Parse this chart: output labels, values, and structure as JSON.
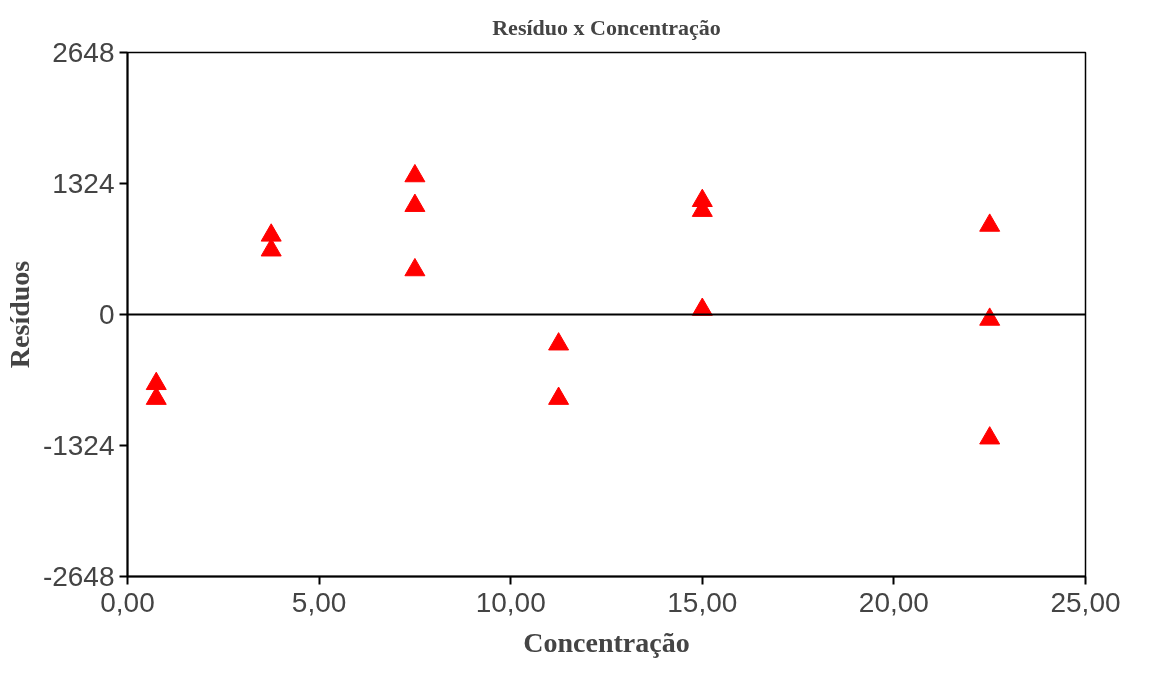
{
  "chart_data": {
    "type": "scatter",
    "title": "Resíduo x Concentração",
    "xlabel": "Concentração",
    "ylabel": "Resíduos",
    "series": [
      {
        "color": "#ff0000",
        "x": [
          0.75,
          0.75,
          3.75,
          3.75,
          7.5,
          7.5,
          7.5,
          11.25,
          11.25,
          15,
          15,
          15,
          22.5,
          22.5,
          22.5
        ],
        "values": [
          -700,
          -850,
          800,
          650,
          1400,
          1100,
          450,
          -300,
          -850,
          1150,
          1050,
          50,
          900,
          -50,
          -1250
        ]
      }
    ],
    "ref_lines": [
      {
        "axis": "y",
        "value": 0,
        "color": "#000000"
      }
    ],
    "marker": "triangle",
    "grid": false,
    "xlim": [
      0,
      25
    ],
    "xticks": [
      {
        "value": 0,
        "label": "0,00"
      },
      {
        "value": 5,
        "label": "5,00"
      },
      {
        "value": 10,
        "label": "10,00"
      },
      {
        "value": 15,
        "label": "15,00"
      },
      {
        "value": 20,
        "label": "20,00"
      },
      {
        "value": 25,
        "label": "25,00"
      }
    ],
    "ylim": [
      -2648,
      2648
    ],
    "yticks": [
      -2648,
      -1324,
      0,
      1324,
      2648
    ]
  }
}
